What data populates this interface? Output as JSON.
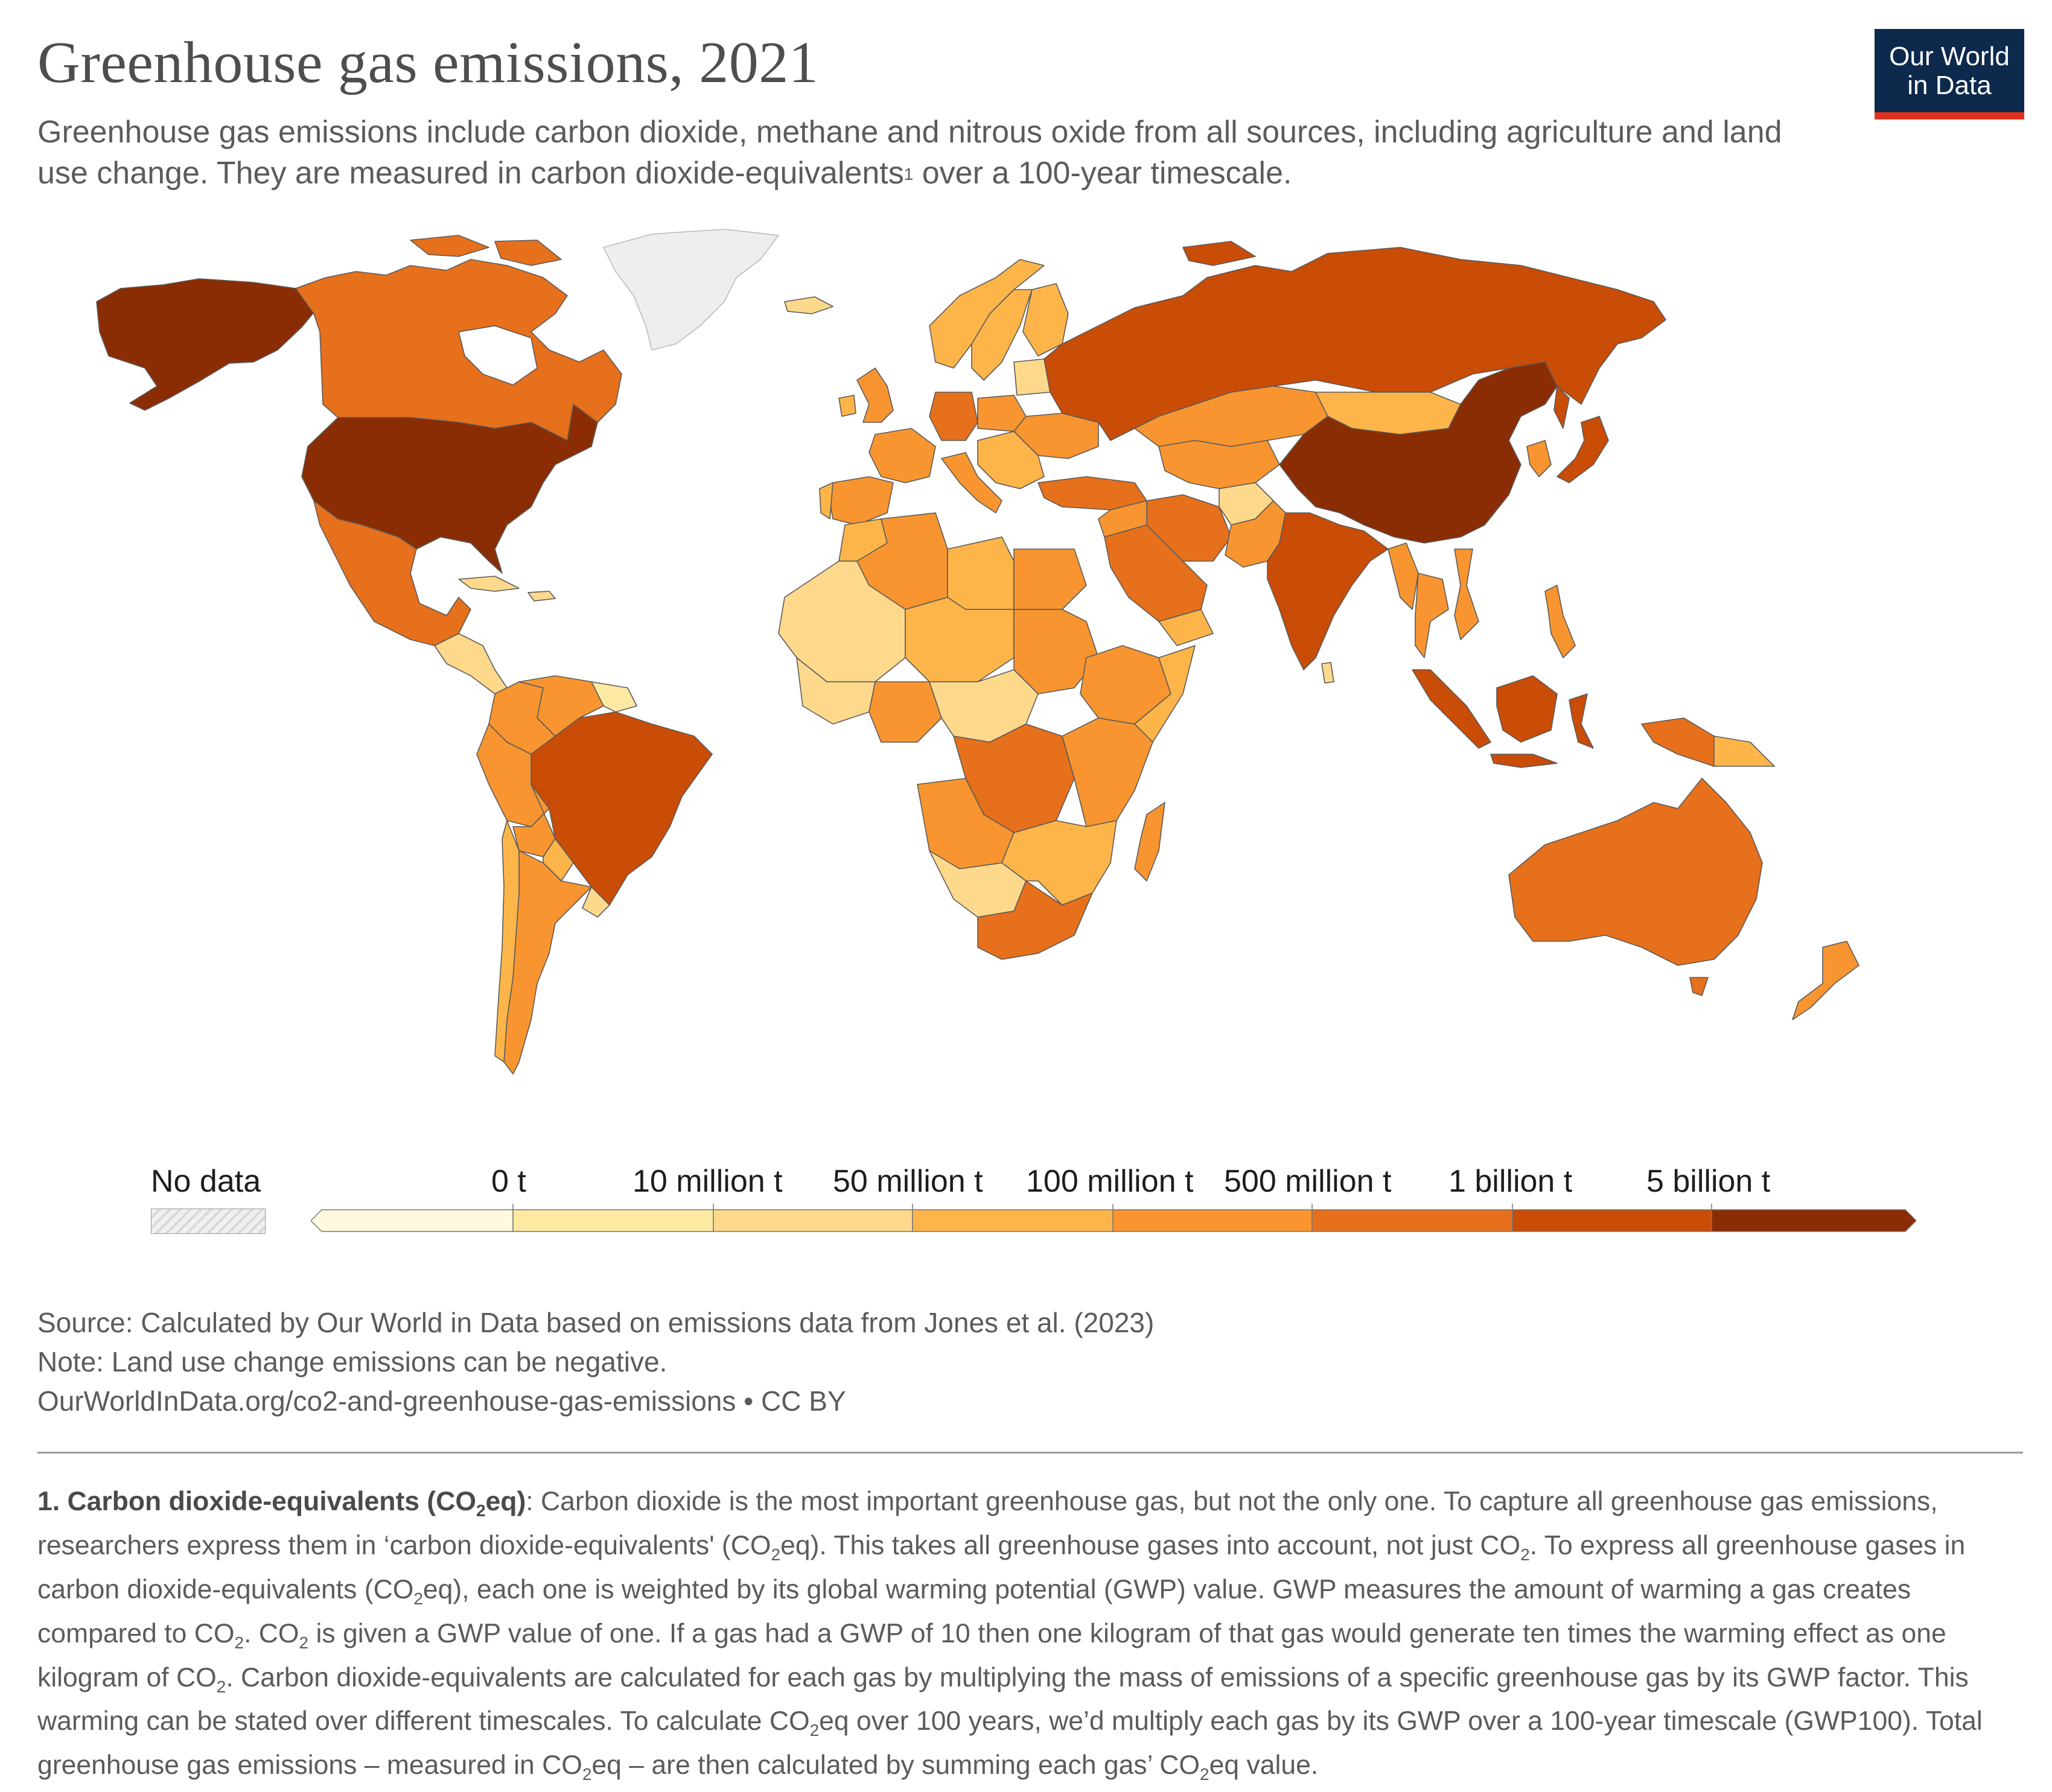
{
  "header": {
    "title": "Greenhouse gas emissions, 2021",
    "subtitle_pre": "Greenhouse gas emissions include carbon dioxide, methane and nitrous oxide from all sources, including agriculture and land use change. They are measured in carbon dioxide-equivalents",
    "subtitle_sup": "1",
    "subtitle_post": " over a 100-year timescale."
  },
  "logo": {
    "line1": "Our World",
    "line2": "in Data"
  },
  "map": {
    "colors": {
      "no_data": "#eeeeee",
      "below_zero": "#fffadd",
      "c0_10m": "#fee9a3",
      "c10_50m": "#fed98c",
      "c50_100m": "#fdb54a",
      "c100_500m": "#f89530",
      "c500m_1b": "#e6701b",
      "c1b_5b": "#c94c07",
      "c5b_plus": "#8b2d04",
      "ocean": "#ffffff",
      "border": "#5a5a5a"
    },
    "regions": [
      {
        "name": "United States",
        "bin": "5 billion t+"
      },
      {
        "name": "China",
        "bin": "5 billion t+"
      },
      {
        "name": "Russia",
        "bin": "1 billion t – 5 billion t"
      },
      {
        "name": "India",
        "bin": "1 billion t – 5 billion t"
      },
      {
        "name": "Brazil",
        "bin": "1 billion t – 5 billion t"
      },
      {
        "name": "Indonesia",
        "bin": "1 billion t – 5 billion t"
      },
      {
        "name": "Canada",
        "bin": "500 million t – 1 billion t"
      },
      {
        "name": "Australia",
        "bin": "500 million t – 1 billion t"
      },
      {
        "name": "Greenland",
        "bin": "No data"
      }
    ]
  },
  "legend": {
    "no_data_label": "No data",
    "tick_labels": [
      "0 t",
      "10 million t",
      "50 million t",
      "100 million t",
      "500 million t",
      "1 billion t",
      "5 billion t"
    ]
  },
  "footer": {
    "source": "Source: Calculated by Our World in Data based on emissions data from Jones et al. (2023)",
    "note": "Note: Land use change emissions can be negative.",
    "url": "OurWorldInData.org/co2-and-greenhouse-gas-emissions • CC BY"
  },
  "footnote": {
    "lead": "1. Carbon dioxide-equivalents (CO",
    "lead_sub": "2",
    "lead_end": "eq)",
    "p1": ": Carbon dioxide is the most important greenhouse gas, but not the only one. To capture all greenhouse gas emissions, researchers express them in ‘carbon dioxide-equivalents' (CO",
    "p2": "eq). This takes all greenhouse gases into account, not just CO",
    "p3": ". To express all greenhouse gases in carbon dioxide-equivalents (CO",
    "p4": "eq), each one is weighted by its global warming potential (GWP) value. GWP measures the amount of warming a gas creates compared to CO",
    "p5": ". CO",
    "p6": " is given a GWP value of one. If a gas had a GWP of 10 then one kilogram of that gas would generate ten times the warming effect as one kilogram of CO",
    "p7": ". Carbon dioxide-equivalents are calculated for each gas by multiplying the mass of emissions of a specific greenhouse gas by its GWP factor. This warming can be stated over different timescales. To calculate CO",
    "p8": "eq over 100 years, we’d multiply each gas by its GWP over a 100-year timescale (GWP100). Total greenhouse gas emissions – measured in CO",
    "p9": "eq – are then calculated by summing each gas’ CO",
    "p10": "eq value.",
    "sub": "2"
  }
}
